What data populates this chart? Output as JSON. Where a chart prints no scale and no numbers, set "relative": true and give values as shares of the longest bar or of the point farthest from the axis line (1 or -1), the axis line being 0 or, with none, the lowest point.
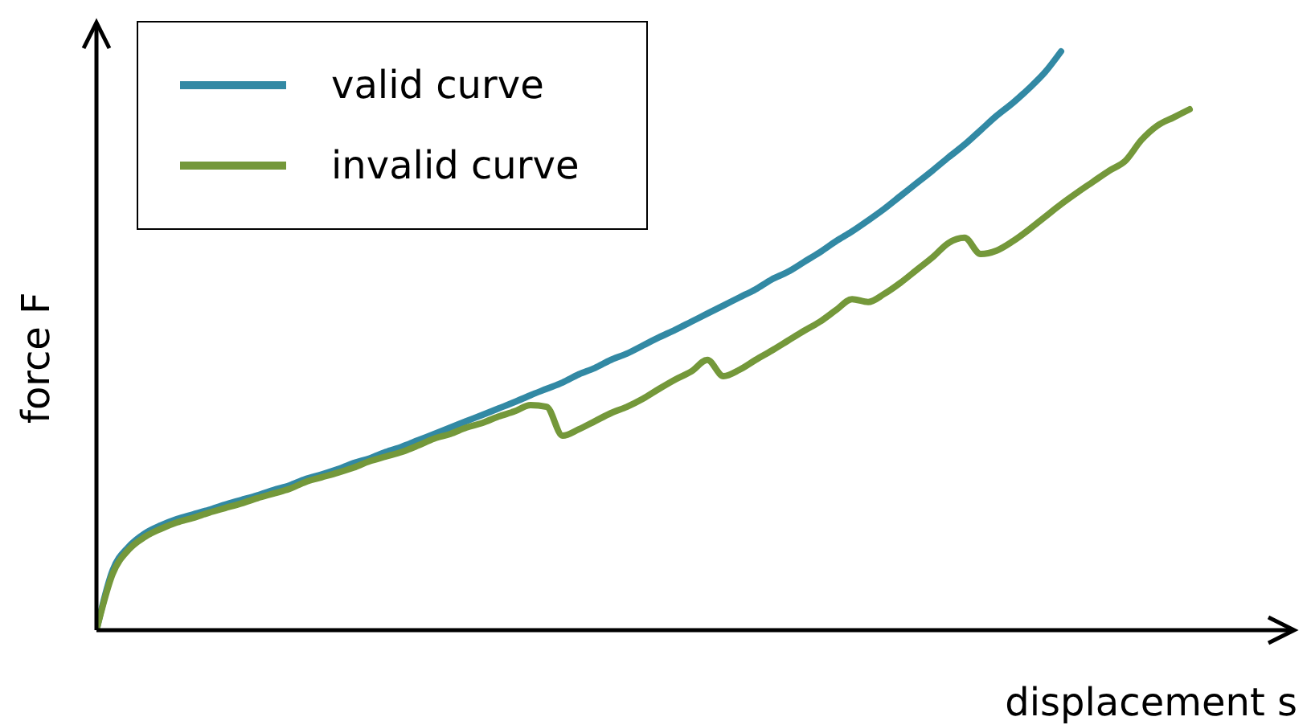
{
  "chart_data": {
    "type": "line",
    "relative": true,
    "xlabel": "displacement s",
    "ylabel": "force F",
    "legend": "top left",
    "marker": "none",
    "line_style": "solid",
    "grid": false,
    "tick_labels": false,
    "categories": [
      null,
      null,
      null,
      null,
      null,
      null,
      null,
      null,
      null,
      null,
      null,
      null,
      null,
      null,
      null,
      null,
      null,
      null,
      null,
      null,
      null,
      null,
      null,
      null,
      null,
      null,
      null,
      null,
      null,
      null,
      null,
      null,
      null,
      null,
      null,
      null,
      null,
      null,
      null,
      null,
      null,
      null,
      null,
      null,
      null,
      null,
      null,
      null,
      null,
      null,
      null,
      null,
      null,
      null,
      null,
      null,
      null,
      null,
      null,
      null,
      null,
      null,
      null,
      null,
      null,
      null,
      null,
      null,
      null
    ],
    "series": [
      {
        "name": "valid curve",
        "color": "#3289a4",
        "values": [
          0,
          0.103,
          0.144,
          0.167,
          0.181,
          0.192,
          0.2,
          0.208,
          0.217,
          0.225,
          0.233,
          0.242,
          0.25,
          0.261,
          0.269,
          0.278,
          0.289,
          0.297,
          0.308,
          0.317,
          0.328,
          0.339,
          0.35,
          0.361,
          0.372,
          0.383,
          0.394,
          0.406,
          0.417,
          0.428,
          0.442,
          0.453,
          0.467,
          0.478,
          0.492,
          0.506,
          0.519,
          0.533,
          0.547,
          0.561,
          0.575,
          0.589,
          0.606,
          0.619,
          0.636,
          0.653,
          0.672,
          0.689,
          0.708,
          0.728,
          0.75,
          0.772,
          0.794,
          0.817,
          0.839,
          0.864,
          0.889,
          0.911,
          0.936,
          0.964,
          1,
          null,
          null,
          null,
          null,
          null,
          null,
          null,
          null
        ]
      },
      {
        "name": "invalid curve",
        "color": "#74983a",
        "values": [
          0,
          0.097,
          0.139,
          0.161,
          0.175,
          0.186,
          0.194,
          0.203,
          0.211,
          0.219,
          0.228,
          0.236,
          0.244,
          0.256,
          0.264,
          0.272,
          0.281,
          0.292,
          0.3,
          0.308,
          0.319,
          0.331,
          0.339,
          0.35,
          0.358,
          0.369,
          0.378,
          0.389,
          0.386,
          0.336,
          0.347,
          0.361,
          0.375,
          0.386,
          0.4,
          0.417,
          0.433,
          0.447,
          0.467,
          0.439,
          0.45,
          0.467,
          0.483,
          0.5,
          0.517,
          0.533,
          0.553,
          0.572,
          0.567,
          0.581,
          0.6,
          0.622,
          0.644,
          0.669,
          0.678,
          0.65,
          0.656,
          0.672,
          0.692,
          0.714,
          0.736,
          0.756,
          0.775,
          0.794,
          0.811,
          0.847,
          0.872,
          0.886,
          0.9
        ]
      }
    ]
  }
}
